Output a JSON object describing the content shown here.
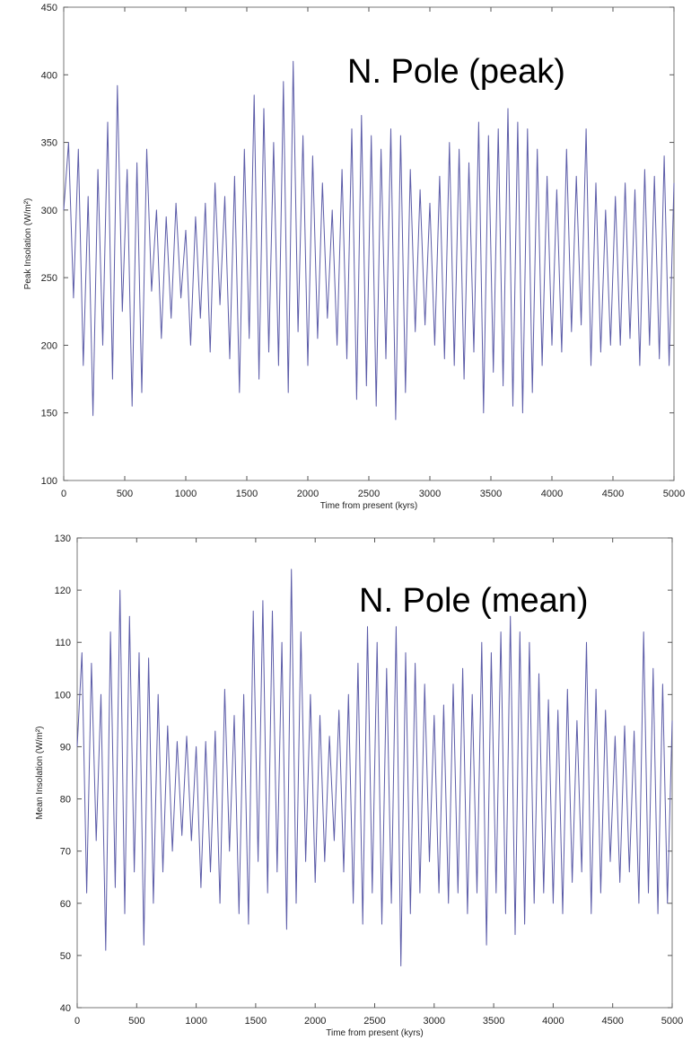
{
  "chart_data": [
    {
      "type": "line",
      "annotation": "N. Pole (peak)",
      "xlabel": "Time from present (kyrs)",
      "ylabel": "Peak Insolation (W/m²)",
      "xlim": [
        0,
        5000
      ],
      "ylim": [
        100,
        450
      ],
      "xticks": [
        0,
        500,
        1000,
        1500,
        2000,
        2500,
        3000,
        3500,
        4000,
        4500,
        5000
      ],
      "yticks": [
        100,
        150,
        200,
        250,
        300,
        350,
        400,
        450
      ],
      "grid": false,
      "series": [
        {
          "color": "#5c5ca8",
          "x": [
            0,
            40,
            80,
            120,
            160,
            200,
            240,
            280,
            320,
            360,
            400,
            440,
            480,
            520,
            560,
            600,
            640,
            680,
            720,
            760,
            800,
            840,
            880,
            920,
            960,
            1000,
            1040,
            1080,
            1120,
            1160,
            1200,
            1240,
            1280,
            1320,
            1360,
            1400,
            1440,
            1480,
            1520,
            1560,
            1600,
            1640,
            1680,
            1720,
            1760,
            1800,
            1840,
            1880,
            1920,
            1960,
            2000,
            2040,
            2080,
            2120,
            2160,
            2200,
            2240,
            2280,
            2320,
            2360,
            2400,
            2440,
            2480,
            2520,
            2560,
            2600,
            2640,
            2680,
            2720,
            2760,
            2800,
            2840,
            2880,
            2920,
            2960,
            3000,
            3040,
            3080,
            3120,
            3160,
            3200,
            3240,
            3280,
            3320,
            3360,
            3400,
            3440,
            3480,
            3520,
            3560,
            3600,
            3640,
            3680,
            3720,
            3760,
            3800,
            3840,
            3880,
            3920,
            3960,
            4000,
            4040,
            4080,
            4120,
            4160,
            4200,
            4240,
            4280,
            4320,
            4360,
            4400,
            4440,
            4480,
            4520,
            4560,
            4600,
            4640,
            4680,
            4720,
            4760,
            4800,
            4840,
            4880,
            4920,
            4960,
            5000
          ],
          "y": [
            300,
            350,
            235,
            345,
            185,
            310,
            148,
            330,
            200,
            365,
            175,
            392,
            225,
            330,
            155,
            335,
            165,
            345,
            240,
            300,
            205,
            295,
            220,
            305,
            235,
            285,
            200,
            295,
            220,
            305,
            195,
            320,
            230,
            310,
            190,
            325,
            165,
            345,
            205,
            385,
            175,
            375,
            195,
            350,
            185,
            395,
            165,
            410,
            210,
            355,
            185,
            340,
            205,
            320,
            220,
            300,
            200,
            330,
            190,
            360,
            160,
            370,
            170,
            355,
            155,
            345,
            190,
            360,
            145,
            355,
            165,
            330,
            210,
            315,
            215,
            305,
            200,
            325,
            190,
            350,
            185,
            345,
            175,
            335,
            195,
            365,
            150,
            355,
            180,
            360,
            170,
            375,
            155,
            365,
            150,
            360,
            165,
            345,
            185,
            325,
            200,
            315,
            195,
            345,
            210,
            325,
            215,
            360,
            185,
            320,
            195,
            300,
            200,
            310,
            200,
            320,
            205,
            315,
            185,
            330,
            200,
            325,
            190,
            340,
            185,
            320
          ]
        }
      ]
    },
    {
      "type": "line",
      "annotation": "N. Pole (mean)",
      "xlabel": "Time from present (kyrs)",
      "ylabel": "Mean Insolation (W/m²)",
      "xlim": [
        0,
        5000
      ],
      "ylim": [
        40,
        130
      ],
      "xticks": [
        0,
        500,
        1000,
        1500,
        2000,
        2500,
        3000,
        3500,
        4000,
        4500,
        5000
      ],
      "yticks": [
        40,
        50,
        60,
        70,
        80,
        90,
        100,
        110,
        120,
        130
      ],
      "grid": false,
      "series": [
        {
          "color": "#5c5ca8",
          "x": [
            0,
            40,
            80,
            120,
            160,
            200,
            240,
            280,
            320,
            360,
            400,
            440,
            480,
            520,
            560,
            600,
            640,
            680,
            720,
            760,
            800,
            840,
            880,
            920,
            960,
            1000,
            1040,
            1080,
            1120,
            1160,
            1200,
            1240,
            1280,
            1320,
            1360,
            1400,
            1440,
            1480,
            1520,
            1560,
            1600,
            1640,
            1680,
            1720,
            1760,
            1800,
            1840,
            1880,
            1920,
            1960,
            2000,
            2040,
            2080,
            2120,
            2160,
            2200,
            2240,
            2280,
            2320,
            2360,
            2400,
            2440,
            2480,
            2520,
            2560,
            2600,
            2640,
            2680,
            2720,
            2760,
            2800,
            2840,
            2880,
            2920,
            2960,
            3000,
            3040,
            3080,
            3120,
            3160,
            3200,
            3240,
            3280,
            3320,
            3360,
            3400,
            3440,
            3480,
            3520,
            3560,
            3600,
            3640,
            3680,
            3720,
            3760,
            3800,
            3840,
            3880,
            3920,
            3960,
            4000,
            4040,
            4080,
            4120,
            4160,
            4200,
            4240,
            4280,
            4320,
            4360,
            4400,
            4440,
            4480,
            4520,
            4560,
            4600,
            4640,
            4680,
            4720,
            4760,
            4800,
            4840,
            4880,
            4920,
            4960,
            5000
          ],
          "y": [
            90,
            108,
            62,
            106,
            72,
            100,
            51,
            112,
            63,
            120,
            58,
            115,
            66,
            108,
            52,
            107,
            60,
            100,
            66,
            94,
            70,
            91,
            73,
            92,
            72,
            90,
            63,
            91,
            66,
            93,
            60,
            101,
            70,
            96,
            58,
            100,
            56,
            116,
            68,
            118,
            62,
            116,
            66,
            110,
            55,
            124,
            60,
            112,
            68,
            100,
            64,
            96,
            68,
            92,
            72,
            97,
            66,
            100,
            60,
            106,
            56,
            113,
            62,
            110,
            56,
            105,
            60,
            113,
            48,
            108,
            58,
            106,
            62,
            102,
            68,
            96,
            62,
            98,
            60,
            102,
            62,
            105,
            58,
            100,
            62,
            110,
            52,
            108,
            62,
            112,
            58,
            115,
            54,
            112,
            56,
            110,
            60,
            104,
            62,
            99,
            60,
            97,
            58,
            101,
            64,
            95,
            66,
            110,
            58,
            101,
            62,
            97,
            68,
            92,
            64,
            94,
            66,
            93,
            60,
            112,
            62,
            105,
            58,
            102,
            60,
            95
          ]
        }
      ]
    }
  ]
}
